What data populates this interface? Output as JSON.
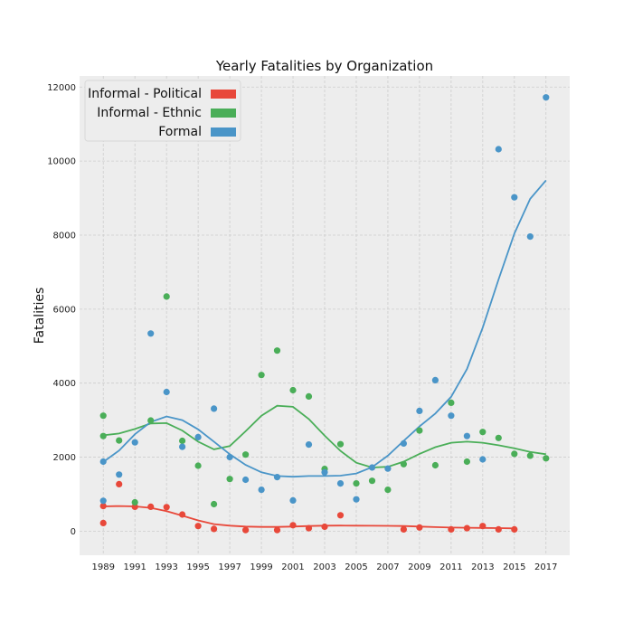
{
  "chart_data": {
    "type": "scatter",
    "title": "Yearly Fatalities by Organization",
    "xlabel": "",
    "ylabel": "Fatalities",
    "xlim": [
      1987.5,
      2018.5
    ],
    "ylim": [
      -650,
      12300
    ],
    "x_ticks": [
      1989,
      1991,
      1993,
      1995,
      1997,
      1999,
      2001,
      2003,
      2005,
      2007,
      2009,
      2011,
      2013,
      2015,
      2017
    ],
    "y_ticks": [
      0,
      2000,
      4000,
      6000,
      8000,
      10000,
      12000
    ],
    "grid": true,
    "legend_position": "top-left",
    "series": [
      {
        "name": "Informal - Political",
        "color": "#e8483a",
        "points": [
          [
            1989,
            220
          ],
          [
            1989,
            680
          ],
          [
            1990,
            1270
          ],
          [
            1991,
            660
          ],
          [
            1992,
            660
          ],
          [
            1993,
            650
          ],
          [
            1994,
            450
          ],
          [
            1995,
            140
          ],
          [
            1996,
            60
          ],
          [
            1998,
            30
          ],
          [
            2000,
            30
          ],
          [
            2001,
            160
          ],
          [
            2002,
            80
          ],
          [
            2003,
            120
          ],
          [
            2004,
            430
          ],
          [
            2008,
            50
          ],
          [
            2009,
            100
          ],
          [
            2011,
            50
          ],
          [
            2012,
            80
          ],
          [
            2013,
            140
          ],
          [
            2014,
            50
          ],
          [
            2015,
            50
          ]
        ],
        "trend": [
          [
            1989,
            670
          ],
          [
            1990,
            680
          ],
          [
            1991,
            670
          ],
          [
            1992,
            630
          ],
          [
            1993,
            540
          ],
          [
            1994,
            420
          ],
          [
            1995,
            290
          ],
          [
            1996,
            190
          ],
          [
            1997,
            150
          ],
          [
            1998,
            125
          ],
          [
            1999,
            115
          ],
          [
            2000,
            115
          ],
          [
            2001,
            125
          ],
          [
            2002,
            140
          ],
          [
            2003,
            150
          ],
          [
            2004,
            152
          ],
          [
            2005,
            150
          ],
          [
            2006,
            147
          ],
          [
            2007,
            145
          ],
          [
            2008,
            138
          ],
          [
            2009,
            125
          ],
          [
            2010,
            110
          ],
          [
            2011,
            98
          ],
          [
            2012,
            92
          ],
          [
            2013,
            88
          ],
          [
            2014,
            82
          ],
          [
            2015,
            75
          ]
        ]
      },
      {
        "name": "Informal - Ethnic",
        "color": "#4aae58",
        "points": [
          [
            1989,
            3120
          ],
          [
            1989,
            2570
          ],
          [
            1990,
            2450
          ],
          [
            1991,
            780
          ],
          [
            1992,
            2990
          ],
          [
            1993,
            6340
          ],
          [
            1994,
            2440
          ],
          [
            1995,
            1770
          ],
          [
            1996,
            730
          ],
          [
            1997,
            1410
          ],
          [
            1998,
            2070
          ],
          [
            1999,
            4220
          ],
          [
            2000,
            4880
          ],
          [
            2001,
            3810
          ],
          [
            2002,
            3640
          ],
          [
            2003,
            1680
          ],
          [
            2004,
            2350
          ],
          [
            2005,
            1290
          ],
          [
            2006,
            1360
          ],
          [
            2007,
            1120
          ],
          [
            2008,
            1810
          ],
          [
            2009,
            2720
          ],
          [
            2010,
            1780
          ],
          [
            2011,
            3470
          ],
          [
            2012,
            1880
          ],
          [
            2013,
            2680
          ],
          [
            2014,
            2520
          ],
          [
            2015,
            2090
          ],
          [
            2016,
            2040
          ],
          [
            2017,
            1970
          ]
        ],
        "trend": [
          [
            1989,
            2590
          ],
          [
            1990,
            2640
          ],
          [
            1991,
            2760
          ],
          [
            1992,
            2910
          ],
          [
            1993,
            2920
          ],
          [
            1994,
            2720
          ],
          [
            1995,
            2420
          ],
          [
            1996,
            2210
          ],
          [
            1997,
            2300
          ],
          [
            1998,
            2700
          ],
          [
            1999,
            3120
          ],
          [
            2000,
            3390
          ],
          [
            2001,
            3360
          ],
          [
            2002,
            3030
          ],
          [
            2003,
            2580
          ],
          [
            2004,
            2170
          ],
          [
            2005,
            1850
          ],
          [
            2006,
            1720
          ],
          [
            2007,
            1740
          ],
          [
            2008,
            1880
          ],
          [
            2009,
            2090
          ],
          [
            2010,
            2270
          ],
          [
            2011,
            2390
          ],
          [
            2012,
            2420
          ],
          [
            2013,
            2390
          ],
          [
            2014,
            2320
          ],
          [
            2015,
            2240
          ],
          [
            2016,
            2140
          ],
          [
            2017,
            2080
          ]
        ]
      },
      {
        "name": "Formal",
        "color": "#4a95c8",
        "points": [
          [
            1989,
            820
          ],
          [
            1989,
            1880
          ],
          [
            1990,
            1530
          ],
          [
            1991,
            2400
          ],
          [
            1992,
            5340
          ],
          [
            1993,
            3760
          ],
          [
            1994,
            2280
          ],
          [
            1995,
            2540
          ],
          [
            1996,
            3310
          ],
          [
            1997,
            2000
          ],
          [
            1998,
            1390
          ],
          [
            1999,
            1120
          ],
          [
            2000,
            1460
          ],
          [
            2001,
            830
          ],
          [
            2002,
            2340
          ],
          [
            2003,
            1590
          ],
          [
            2004,
            1290
          ],
          [
            2005,
            860
          ],
          [
            2006,
            1720
          ],
          [
            2007,
            1690
          ],
          [
            2008,
            2370
          ],
          [
            2009,
            3250
          ],
          [
            2010,
            4080
          ],
          [
            2011,
            3120
          ],
          [
            2012,
            2570
          ],
          [
            2013,
            1940
          ],
          [
            2014,
            10320
          ],
          [
            2015,
            9020
          ],
          [
            2016,
            7960
          ],
          [
            2017,
            11720
          ]
        ],
        "trend": [
          [
            1989,
            1870
          ],
          [
            1990,
            2180
          ],
          [
            1991,
            2620
          ],
          [
            1992,
            2950
          ],
          [
            1993,
            3100
          ],
          [
            1994,
            3000
          ],
          [
            1995,
            2750
          ],
          [
            1996,
            2420
          ],
          [
            1997,
            2080
          ],
          [
            1998,
            1790
          ],
          [
            1999,
            1590
          ],
          [
            2000,
            1490
          ],
          [
            2001,
            1470
          ],
          [
            2002,
            1490
          ],
          [
            2003,
            1490
          ],
          [
            2004,
            1500
          ],
          [
            2005,
            1560
          ],
          [
            2006,
            1730
          ],
          [
            2007,
            2040
          ],
          [
            2008,
            2440
          ],
          [
            2009,
            2830
          ],
          [
            2010,
            3180
          ],
          [
            2011,
            3630
          ],
          [
            2012,
            4380
          ],
          [
            2013,
            5500
          ],
          [
            2014,
            6800
          ],
          [
            2015,
            8040
          ],
          [
            2016,
            8980
          ],
          [
            2017,
            9480
          ]
        ]
      }
    ]
  }
}
